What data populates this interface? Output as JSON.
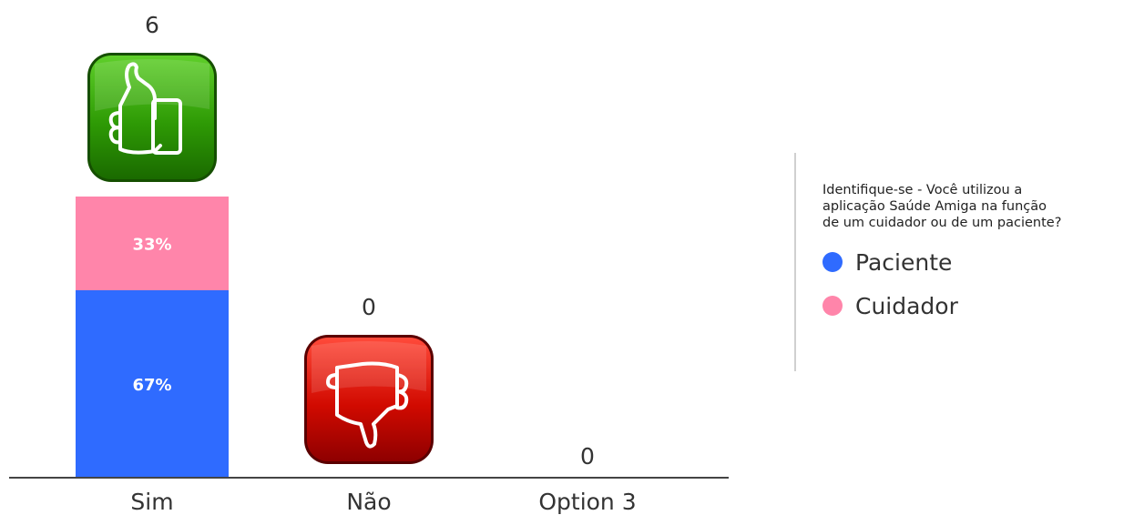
{
  "chart_data": {
    "type": "bar",
    "categories": [
      "Sim",
      "Não",
      "Option 3"
    ],
    "totals": [
      6,
      0,
      0
    ],
    "series": [
      {
        "name": "Paciente",
        "color": "#2f6bff",
        "values": [
          4,
          0,
          0
        ],
        "labels": [
          "67%",
          "",
          ""
        ]
      },
      {
        "name": "Cuidador",
        "color": "#ff85aa",
        "values": [
          2,
          0,
          0
        ],
        "labels": [
          "33%",
          "",
          ""
        ]
      }
    ],
    "icons": [
      "thumbs-up-icon",
      "thumbs-down-icon",
      ""
    ],
    "legend_position": "right"
  },
  "legend": {
    "title_lines": [
      "Identifique-se - Você utilizou a",
      "aplicação Saúde Amiga na função",
      "de um cuidador ou de um paciente?"
    ],
    "items": [
      {
        "label": "Paciente",
        "color": "#2f6bff"
      },
      {
        "label": "Cuidador",
        "color": "#ff85aa"
      }
    ]
  },
  "colors": {
    "axis": "#444444",
    "text": "#333333",
    "thumbs_up": "#2e8b00",
    "thumbs_down": "#c40000"
  }
}
